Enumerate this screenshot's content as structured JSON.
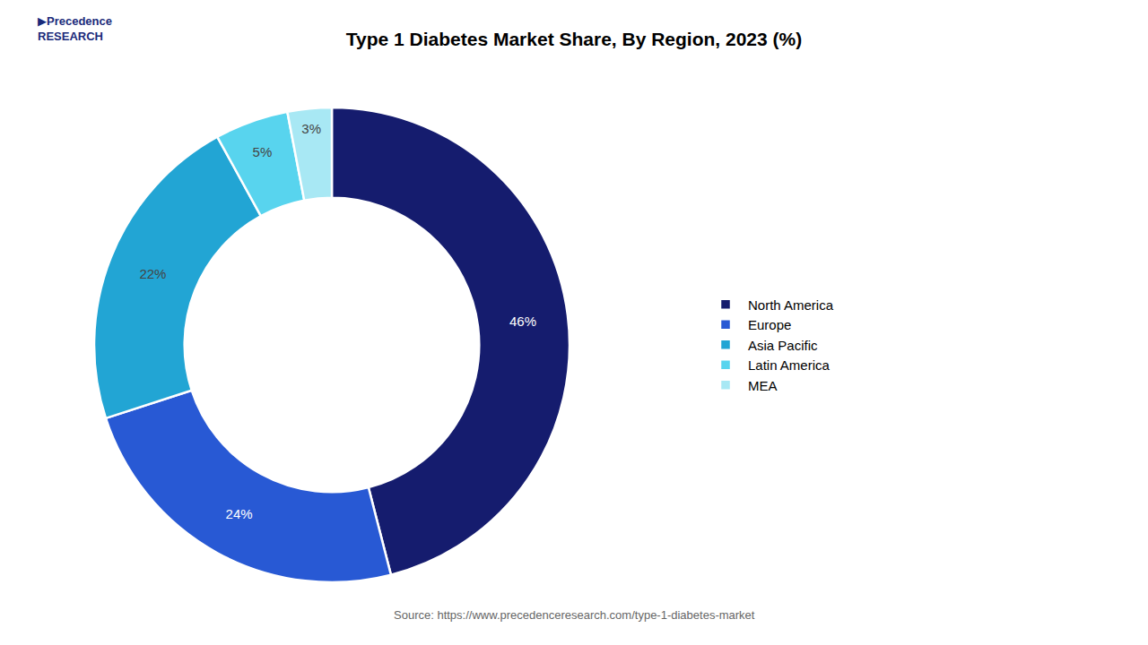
{
  "chart_data": {
    "type": "pie",
    "title": "Type 1 Diabetes Market Share, By Region, 2023 (%)",
    "categories": [
      "North America",
      "Europe",
      "Asia Pacific",
      "Latin America",
      "MEA"
    ],
    "values": [
      46,
      24,
      22,
      5,
      3
    ],
    "value_labels": [
      "46%",
      "24%",
      "22%",
      "5%",
      "3%"
    ],
    "colors": [
      "#151c6e",
      "#2859d4",
      "#22a5d4",
      "#58d4ee",
      "#a8e8f4"
    ],
    "data_labels": true,
    "legend": "right",
    "annotations": [
      "▶Precedence\nRESEARCH",
      "Source: https://www.precedenceresearch.com/type-1-diabetes-market"
    ]
  }
}
